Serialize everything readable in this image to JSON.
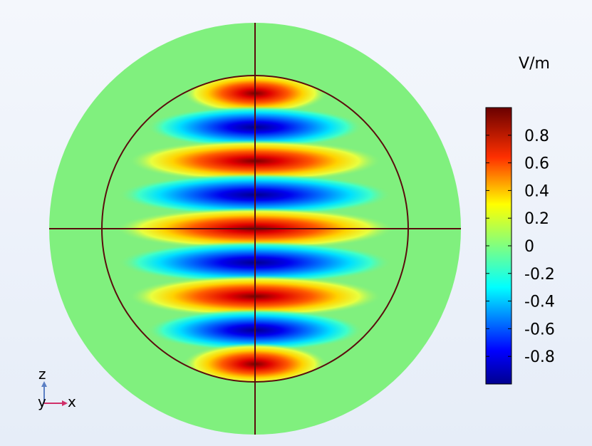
{
  "chart_data": {
    "type": "heatmap",
    "title": "",
    "colorbar": {
      "unit": "V/m",
      "ticks": [
        "0.8",
        "0.6",
        "0.4",
        "0.2",
        "0",
        "-0.2",
        "-0.4",
        "-0.6",
        "-0.8"
      ],
      "tick_values": [
        0.8,
        0.6,
        0.4,
        0.2,
        0,
        -0.2,
        -0.4,
        -0.6,
        -0.8
      ],
      "range": [
        -1,
        1
      ],
      "colormap": "rainbow (dark blue → blue → cyan → green → yellow → orange → red → dark red)"
    },
    "field": {
      "description_values": "standing-wave pattern inside inner circle; horizontal bands alternating sign along z",
      "band_peaks": [
        1,
        -1,
        1,
        -1,
        1,
        -1,
        1,
        -1,
        1
      ],
      "outer_region_value": 0
    },
    "axes_triad": {
      "z_label": "z",
      "y_label": "y",
      "x_label": "x",
      "z_color": "#5b7fc4",
      "x_color": "#d0306a"
    },
    "colors": {
      "outer_domain": "#80f07e",
      "boundary_lines": "#5a0d0d"
    }
  }
}
